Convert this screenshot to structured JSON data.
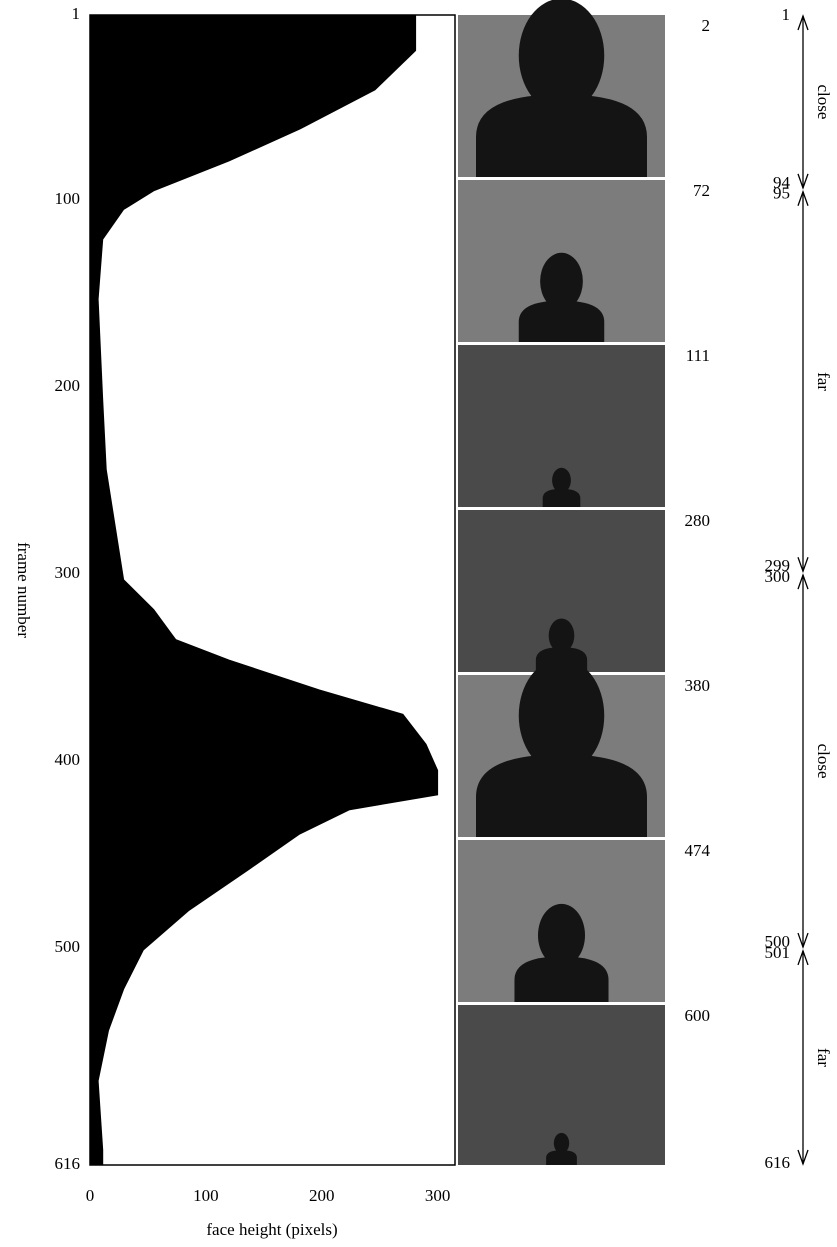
{
  "chart_data": {
    "type": "area",
    "orientation": "horizontal",
    "x_label": "frame number",
    "y_label": "face height (pixels)",
    "x": [
      1,
      20,
      41,
      62,
      79,
      95,
      105,
      121,
      153,
      207,
      244,
      303,
      319,
      335,
      346,
      362,
      375,
      391,
      405,
      418,
      426,
      439,
      458,
      480,
      501,
      522,
      544,
      571,
      608,
      616
    ],
    "values": [
      281,
      281,
      246,
      181,
      120,
      55,
      29,
      11,
      7,
      11,
      14,
      29,
      55,
      74,
      120,
      198,
      270,
      290,
      300,
      300,
      224,
      181,
      137,
      85,
      46,
      29,
      16,
      7,
      11,
      11
    ],
    "color": "#000000",
    "xlim": [
      1,
      616
    ],
    "xticks": [
      1,
      100,
      200,
      300,
      400,
      500,
      616
    ],
    "ylim": [
      0,
      315
    ],
    "yticks": [
      0,
      100,
      200,
      300
    ],
    "thumbnail_frames": [
      2,
      72,
      111,
      280,
      380,
      474,
      600
    ],
    "segments": [
      {
        "start": 1,
        "end": 94,
        "label": "close"
      },
      {
        "start": 95,
        "end": 299,
        "label": "far"
      },
      {
        "start": 300,
        "end": 500,
        "label": "close"
      },
      {
        "start": 501,
        "end": 616,
        "label": "far"
      }
    ]
  }
}
